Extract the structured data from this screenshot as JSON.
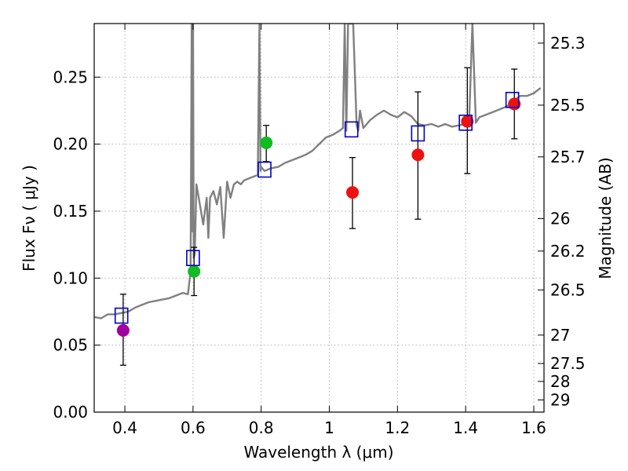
{
  "chart_data": {
    "type": "scatter",
    "title": "",
    "xlabel": "Wavelength  λ (μm)",
    "ylabel": "Flux  Fν ( μJy )",
    "ylabel_right": "Magnitude (AB)",
    "xlim": [
      0.31,
      1.63
    ],
    "ylim": [
      0.0,
      0.29
    ],
    "grid": true,
    "x_ticks": [
      0.4,
      0.6,
      0.8,
      1.0,
      1.2,
      1.4,
      1.6
    ],
    "x_tick_labels": [
      "0.4",
      "0.6",
      "0.8",
      "1",
      "1.2",
      "1.4",
      "1.6"
    ],
    "y_ticks": [
      0.0,
      0.05,
      0.1,
      0.15,
      0.2,
      0.25
    ],
    "y_tick_labels": [
      "0.00",
      "0.05",
      "0.10",
      "0.15",
      "0.20",
      "0.25"
    ],
    "right_ticks": [
      {
        "mag": "25.3",
        "flux": 0.2754
      },
      {
        "mag": "25.5",
        "flux": 0.2291
      },
      {
        "mag": "25.7",
        "flux": 0.1905
      },
      {
        "mag": "26",
        "flux": 0.1445
      },
      {
        "mag": "26.2",
        "flux": 0.1202
      },
      {
        "mag": "26.5",
        "flux": 0.0912
      },
      {
        "mag": "27",
        "flux": 0.0575
      },
      {
        "mag": "27.5",
        "flux": 0.0363
      },
      {
        "mag": "28",
        "flux": 0.0229
      },
      {
        "mag": "29",
        "flux": 0.0091
      }
    ],
    "colors": {
      "sed": "#808080",
      "model": "#0000cc",
      "errorbar": "#000000",
      "grid": "#b0b0b0",
      "purple": "#a000a0",
      "green": "#11bb22",
      "red": "#ee1111"
    },
    "series": [
      {
        "name": "observed",
        "points": [
          {
            "x": 0.395,
            "y": 0.061,
            "err_low": 0.035,
            "err_high": 0.088,
            "color": "purple"
          },
          {
            "x": 0.603,
            "y": 0.105,
            "err_low": 0.087,
            "err_high": 0.123,
            "color": "green"
          },
          {
            "x": 0.815,
            "y": 0.201,
            "err_low": 0.187,
            "err_high": 0.214,
            "color": "green"
          },
          {
            "x": 1.068,
            "y": 0.164,
            "err_low": 0.137,
            "err_high": 0.19,
            "color": "red"
          },
          {
            "x": 1.26,
            "y": 0.192,
            "err_low": 0.144,
            "err_high": 0.239,
            "color": "red"
          },
          {
            "x": 1.405,
            "y": 0.217,
            "err_low": 0.178,
            "err_high": 0.257,
            "color": "red"
          },
          {
            "x": 1.543,
            "y": 0.23,
            "err_low": 0.204,
            "err_high": 0.256,
            "color": "red"
          }
        ]
      },
      {
        "name": "model_photometry",
        "points": [
          {
            "x": 0.39,
            "y": 0.072
          },
          {
            "x": 0.6,
            "y": 0.115
          },
          {
            "x": 0.81,
            "y": 0.181
          },
          {
            "x": 1.065,
            "y": 0.211
          },
          {
            "x": 1.26,
            "y": 0.208
          },
          {
            "x": 1.4,
            "y": 0.216
          },
          {
            "x": 1.537,
            "y": 0.233
          }
        ]
      },
      {
        "name": "sed_spectrum",
        "x": [
          0.31,
          0.33,
          0.35,
          0.37,
          0.39,
          0.41,
          0.43,
          0.45,
          0.47,
          0.49,
          0.51,
          0.53,
          0.55,
          0.57,
          0.585,
          0.593,
          0.596,
          0.598,
          0.6,
          0.602,
          0.605,
          0.61,
          0.62,
          0.63,
          0.64,
          0.645,
          0.65,
          0.66,
          0.67,
          0.68,
          0.69,
          0.7,
          0.71,
          0.72,
          0.73,
          0.74,
          0.75,
          0.76,
          0.77,
          0.78,
          0.79,
          0.795,
          0.798,
          0.8,
          0.803,
          0.81,
          0.83,
          0.85,
          0.87,
          0.89,
          0.91,
          0.93,
          0.95,
          0.97,
          0.99,
          1.01,
          1.03,
          1.04,
          1.045,
          1.05,
          1.055,
          1.06,
          1.07,
          1.08,
          1.085,
          1.09,
          1.1,
          1.12,
          1.14,
          1.16,
          1.18,
          1.2,
          1.22,
          1.24,
          1.26,
          1.28,
          1.3,
          1.32,
          1.34,
          1.36,
          1.38,
          1.4,
          1.41,
          1.42,
          1.43,
          1.44,
          1.46,
          1.48,
          1.5,
          1.52,
          1.54,
          1.56,
          1.58,
          1.6,
          1.62
        ],
        "y": [
          0.071,
          0.07,
          0.073,
          0.073,
          0.074,
          0.075,
          0.078,
          0.08,
          0.082,
          0.083,
          0.084,
          0.085,
          0.087,
          0.089,
          0.088,
          0.105,
          0.29,
          0.135,
          0.29,
          0.115,
          0.118,
          0.17,
          0.155,
          0.14,
          0.16,
          0.13,
          0.16,
          0.165,
          0.155,
          0.168,
          0.13,
          0.172,
          0.16,
          0.17,
          0.172,
          0.17,
          0.173,
          0.174,
          0.175,
          0.176,
          0.177,
          0.29,
          0.18,
          0.183,
          0.182,
          0.18,
          0.182,
          0.183,
          0.186,
          0.188,
          0.19,
          0.192,
          0.195,
          0.2,
          0.205,
          0.207,
          0.21,
          0.212,
          0.29,
          0.21,
          0.29,
          0.29,
          0.29,
          0.214,
          0.21,
          0.225,
          0.212,
          0.218,
          0.222,
          0.225,
          0.222,
          0.22,
          0.224,
          0.221,
          0.215,
          0.214,
          0.215,
          0.213,
          0.215,
          0.213,
          0.214,
          0.215,
          0.215,
          0.29,
          0.216,
          0.22,
          0.222,
          0.224,
          0.226,
          0.228,
          0.232,
          0.236,
          0.236,
          0.238,
          0.242
        ]
      }
    ]
  }
}
